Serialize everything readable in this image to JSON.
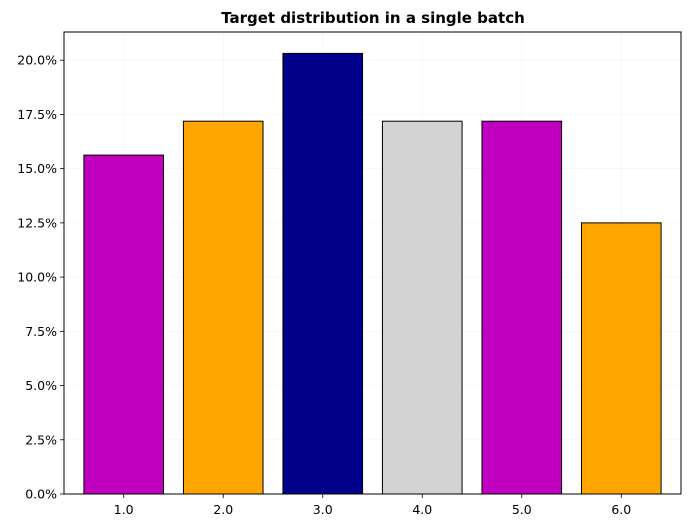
{
  "chart_data": {
    "type": "bar",
    "title": "Target distribution in a single batch",
    "xlabel": "",
    "ylabel": "",
    "categories": [
      "1.0",
      "2.0",
      "3.0",
      "4.0",
      "5.0",
      "6.0"
    ],
    "values": [
      0.15625,
      0.171875,
      0.203125,
      0.171875,
      0.171875,
      0.125
    ],
    "bar_colors": [
      "#bf00bf",
      "#ffa500",
      "#00008b",
      "#d3d3d3",
      "#bf00bf",
      "#ffa500"
    ],
    "edge_color": "#000000",
    "ylim": [
      0,
      0.213
    ],
    "y_ticks": [
      0,
      0.025,
      0.05,
      0.075,
      0.1,
      0.125,
      0.15,
      0.175,
      0.2
    ],
    "y_tick_format": "percent_1dp",
    "grid": true
  }
}
